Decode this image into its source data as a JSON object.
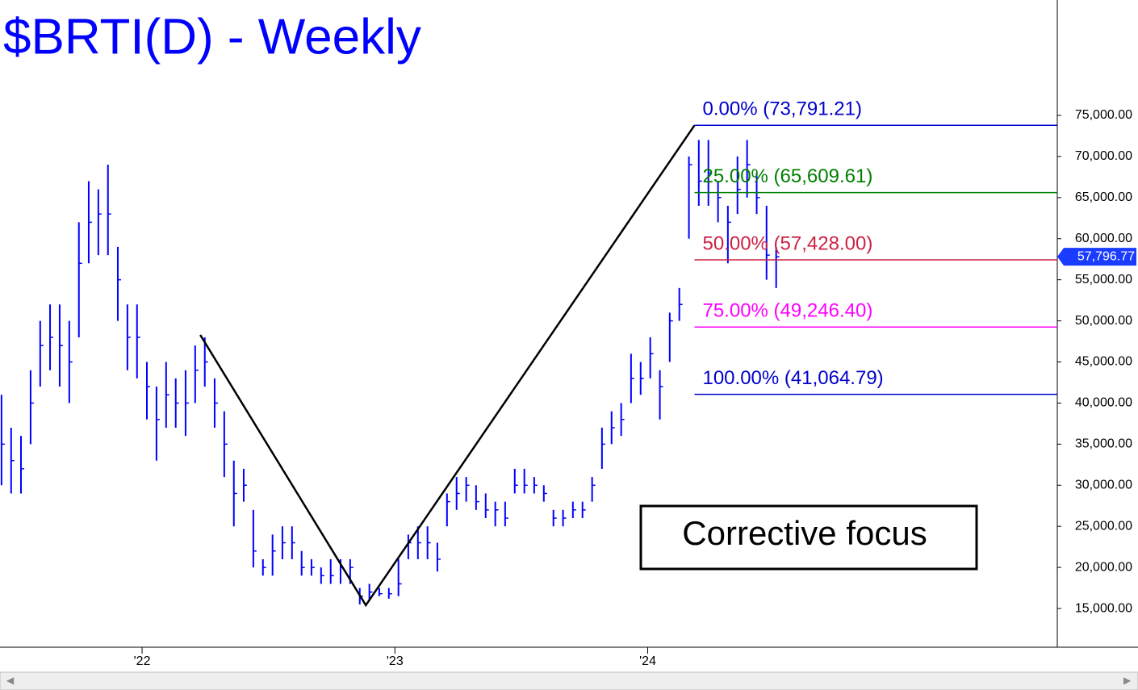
{
  "chart_data": {
    "type": "ohlc",
    "title": "$BRTI(D) - Weekly",
    "color": "#0000ff",
    "xlim": [
      2021.438,
      2025.62
    ],
    "xticks": [
      {
        "value": 2022,
        "label": "'22"
      },
      {
        "value": 2023,
        "label": "'23"
      },
      {
        "value": 2024,
        "label": "'24"
      }
    ],
    "ylim": [
      10290,
      89040
    ],
    "yticks": [
      {
        "value": 15000,
        "label": "15,000.00"
      },
      {
        "value": 20000,
        "label": "20,000.00"
      },
      {
        "value": 25000,
        "label": "25,000.00"
      },
      {
        "value": 30000,
        "label": "30,000.00"
      },
      {
        "value": 35000,
        "label": "35,000.00"
      },
      {
        "value": 40000,
        "label": "40,000.00"
      },
      {
        "value": 45000,
        "label": "45,000.00"
      },
      {
        "value": 50000,
        "label": "50,000.00"
      },
      {
        "value": 55000,
        "label": "55,000.00"
      },
      {
        "value": 60000,
        "label": "60,000.00"
      },
      {
        "value": 65000,
        "label": "65,000.00"
      },
      {
        "value": 70000,
        "label": "70,000.00"
      },
      {
        "value": 75000,
        "label": "75,000.00"
      }
    ],
    "x": [
      2021.444,
      2021.482,
      2021.521,
      2021.559,
      2021.597,
      2021.636,
      2021.674,
      2021.712,
      2021.75,
      2021.789,
      2021.827,
      2021.865,
      2021.904,
      2021.942,
      2021.98,
      2022.019,
      2022.057,
      2022.095,
      2022.133,
      2022.172,
      2022.21,
      2022.248,
      2022.287,
      2022.325,
      2022.363,
      2022.402,
      2022.44,
      2022.478,
      2022.516,
      2022.555,
      2022.593,
      2022.631,
      2022.67,
      2022.708,
      2022.746,
      2022.785,
      2022.823,
      2022.861,
      2022.899,
      2022.938,
      2022.976,
      2023.014,
      2023.053,
      2023.091,
      2023.129,
      2023.168,
      2023.206,
      2023.244,
      2023.282,
      2023.321,
      2023.359,
      2023.397,
      2023.436,
      2023.474,
      2023.512,
      2023.551,
      2023.589,
      2023.627,
      2023.665,
      2023.704,
      2023.742,
      2023.78,
      2023.819,
      2023.857,
      2023.895,
      2023.934,
      2023.972,
      2024.01,
      2024.048,
      2024.087,
      2024.125,
      2024.163,
      2024.202,
      2024.24,
      2024.278,
      2024.317,
      2024.355,
      2024.393,
      2024.431,
      2024.47,
      2024.508
    ],
    "high": [
      41000,
      37000,
      36000,
      44000,
      50000,
      52000,
      52000,
      50000,
      62000,
      67000,
      66000,
      69000,
      59000,
      52000,
      52000,
      45000,
      42000,
      45000,
      43000,
      44000,
      47000,
      48000,
      43000,
      39000,
      33000,
      32000,
      27000,
      21000,
      24000,
      25000,
      25000,
      22000,
      21000,
      20000,
      21000,
      21000,
      21000,
      17500,
      18000,
      17500,
      17500,
      21000,
      24000,
      25000,
      25000,
      23000,
      29000,
      31000,
      31000,
      30000,
      29000,
      28000,
      28000,
      32000,
      32000,
      31000,
      30000,
      27000,
      27000,
      28000,
      28000,
      31000,
      37000,
      39000,
      40000,
      46000,
      45000,
      48000,
      44000,
      51000,
      54000,
      70000,
      72000,
      72000,
      67000,
      64000,
      70000,
      72000,
      68000,
      64000,
      59000
    ],
    "low": [
      30000,
      29000,
      29000,
      35000,
      42000,
      44000,
      42000,
      40000,
      48000,
      57000,
      58000,
      58000,
      50000,
      44000,
      43000,
      38000,
      33000,
      37000,
      37000,
      36000,
      40000,
      42000,
      37000,
      31000,
      25000,
      28000,
      20000,
      19000,
      19000,
      21000,
      21000,
      19000,
      19000,
      18000,
      18000,
      18000,
      18000,
      15500,
      16000,
      16500,
      16200,
      16500,
      21000,
      21000,
      21000,
      19500,
      25000,
      27000,
      28000,
      27000,
      26000,
      25000,
      25000,
      29000,
      29000,
      29000,
      28000,
      25000,
      25000,
      26000,
      26000,
      28000,
      32000,
      35000,
      36000,
      40000,
      41000,
      43000,
      38000,
      45000,
      50000,
      60000,
      64000,
      64000,
      62000,
      57000,
      63000,
      65000,
      63000,
      55000,
      54000
    ],
    "close": [
      35000,
      33000,
      32000,
      40000,
      47000,
      48000,
      47000,
      45000,
      57000,
      62000,
      63000,
      63000,
      55000,
      48000,
      48000,
      42000,
      38000,
      41000,
      40000,
      40000,
      44000,
      45000,
      40000,
      35000,
      29000,
      30000,
      22000,
      20000,
      22000,
      23000,
      23000,
      20000,
      20000,
      19000,
      19000,
      20000,
      20000,
      16500,
      17000,
      16800,
      16800,
      18000,
      23000,
      23000,
      23000,
      21000,
      28000,
      29000,
      30000,
      28000,
      27000,
      27000,
      26000,
      30000,
      30000,
      30000,
      29000,
      26000,
      26000,
      27000,
      27000,
      30000,
      35000,
      37000,
      38000,
      43000,
      43000,
      46000,
      42000,
      50000,
      52000,
      69000,
      67000,
      68000,
      65000,
      62000,
      66000,
      69000,
      65000,
      58000,
      57800
    ],
    "pattern": {
      "x": [
        2022.23,
        2022.885,
        2024.185
      ],
      "values": [
        48290,
        15400,
        73791.21
      ],
      "color": "#000000"
    },
    "levels_start": 2024.185,
    "levels": [
      {
        "label": "0.00% (73,791.21)",
        "value": 73791.21,
        "color": "#0000cc"
      },
      {
        "label": "25.00% (65,609.61)",
        "value": 65609.61,
        "color": "#008000"
      },
      {
        "label": "50.00% (57,428.00)",
        "value": 57428.0,
        "color": "#cc2244"
      },
      {
        "label": "75.00% (49,246.40)",
        "value": 49246.4,
        "color": "#ff00ff"
      },
      {
        "label": "100.00% (41,064.79)",
        "value": 41064.79,
        "color": "#0000cc"
      }
    ],
    "last_price": {
      "value": 57796.77,
      "label": "57,796.77"
    },
    "annotation": "Corrective focus"
  }
}
